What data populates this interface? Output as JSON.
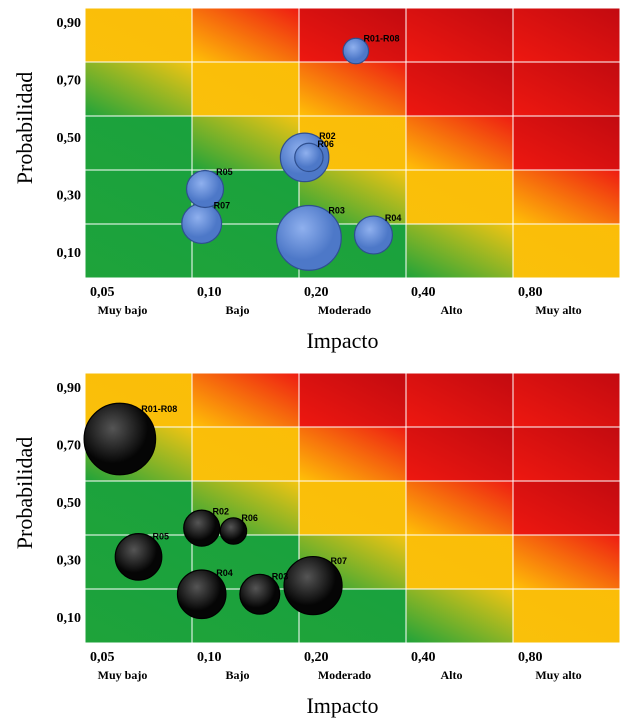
{
  "charts": [
    {
      "type": "scatter",
      "subtype": "bubble-risk-matrix",
      "x_tick_labels": [
        "0,05",
        "0,10",
        "0,20",
        "0,40",
        "0,80"
      ],
      "x_categories": [
        "Muy bajo",
        "Bajo",
        "Moderado",
        "Alto",
        "Muy alto"
      ],
      "y_tick_labels": [
        "0,10",
        "0,30",
        "0,50",
        "0,70",
        "0,90"
      ],
      "xlabel": "Impacto",
      "ylabel": "Probabilidad",
      "bubble_color": "#4d78c8",
      "points": [
        {
          "label": "R01-R08",
          "x": 0.25,
          "y": 0.82,
          "size": 0.14
        },
        {
          "label": "R02",
          "x": 0.18,
          "y": 0.45,
          "size": 0.38
        },
        {
          "label": "R06",
          "x": 0.185,
          "y": 0.45,
          "size": 0.17
        },
        {
          "label": "R05",
          "x": 0.095,
          "y": 0.34,
          "size": 0.26
        },
        {
          "label": "R07",
          "x": 0.093,
          "y": 0.22,
          "size": 0.29
        },
        {
          "label": "R03",
          "x": 0.185,
          "y": 0.17,
          "size": 0.55
        },
        {
          "label": "R04",
          "x": 0.28,
          "y": 0.18,
          "size": 0.27
        }
      ]
    },
    {
      "type": "scatter",
      "subtype": "bubble-risk-matrix",
      "x_tick_labels": [
        "0,05",
        "0,10",
        "0,20",
        "0,40",
        "0,80"
      ],
      "x_categories": [
        "Muy bajo",
        "Bajo",
        "Moderado",
        "Alto",
        "Muy alto"
      ],
      "y_tick_labels": [
        "0,10",
        "0,30",
        "0,50",
        "0,70",
        "0,90"
      ],
      "xlabel": "Impacto",
      "ylabel": "Probabilidad",
      "bubble_color": "#050505",
      "points": [
        {
          "label": "R01-R08",
          "x": 0.055,
          "y": 0.74,
          "size": 0.62
        },
        {
          "label": "R02",
          "x": 0.093,
          "y": 0.43,
          "size": 0.25
        },
        {
          "label": "R06",
          "x": 0.114,
          "y": 0.42,
          "size": 0.15
        },
        {
          "label": "R05",
          "x": 0.062,
          "y": 0.33,
          "size": 0.36
        },
        {
          "label": "R04",
          "x": 0.093,
          "y": 0.2,
          "size": 0.38
        },
        {
          "label": "R03",
          "x": 0.135,
          "y": 0.2,
          "size": 0.29
        },
        {
          "label": "R07",
          "x": 0.19,
          "y": 0.23,
          "size": 0.48
        }
      ]
    }
  ]
}
